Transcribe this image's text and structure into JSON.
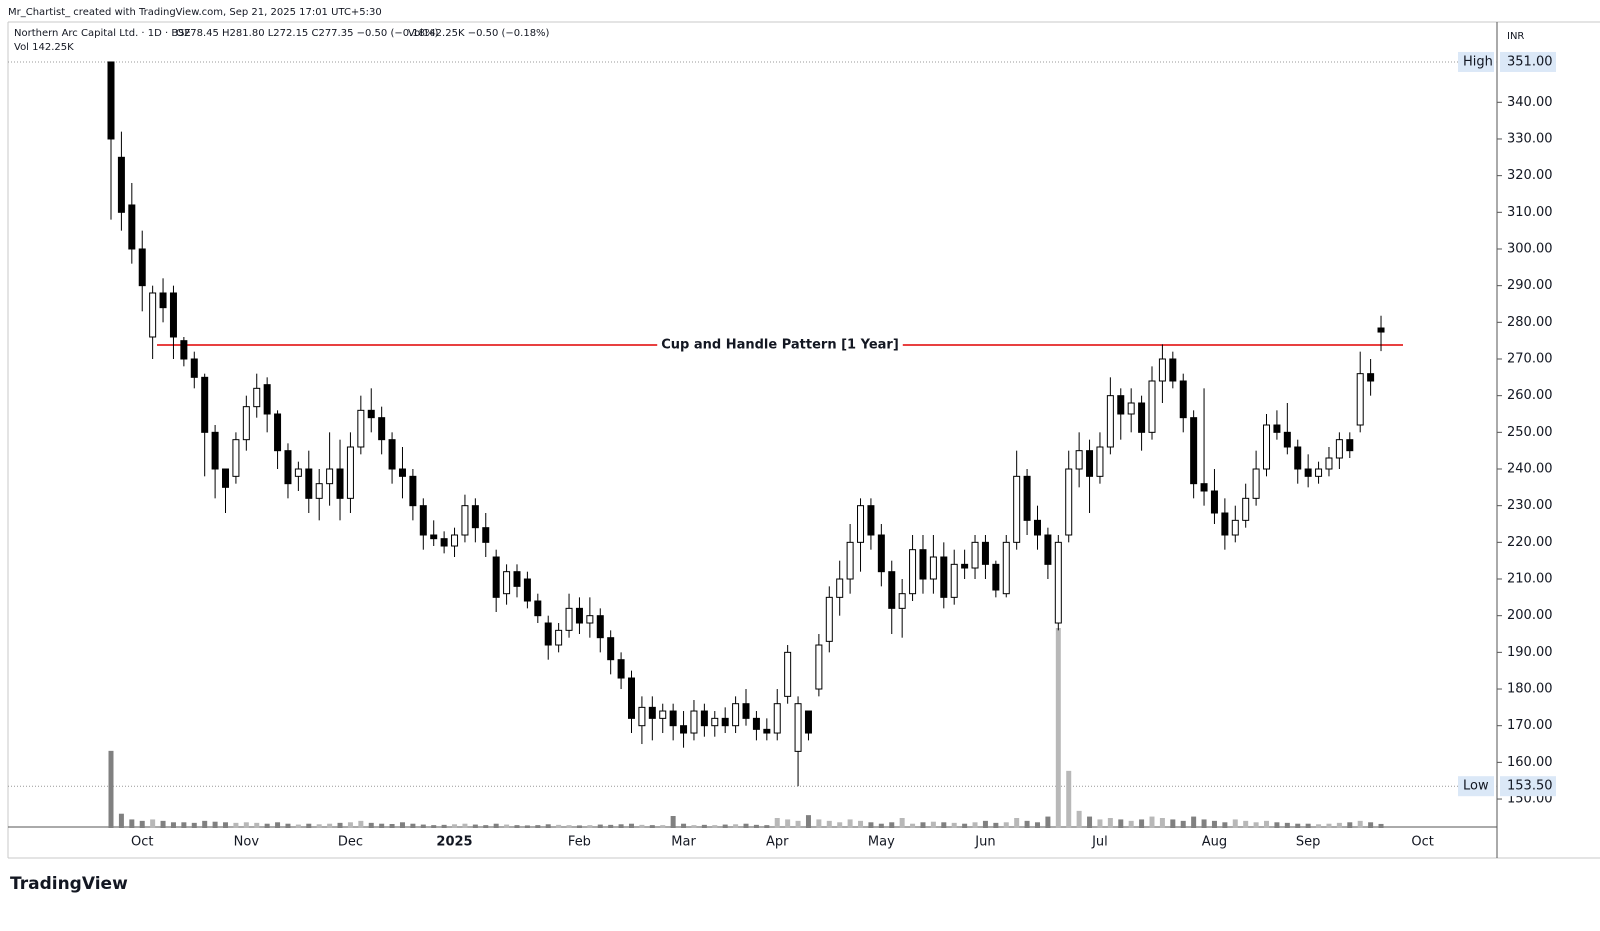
{
  "header": {
    "watermark": "Mr_Chartist_ created with TradingView.com, Sep 21, 2025 17:01 UTC+5:30",
    "symbol": "Northern Arc Capital Ltd. · 1D · BSE",
    "ohlc_text": "O278.45 H281.80 L272.15 C277.35 −0.50 (−0.18%)",
    "vol_text": "Vol142.25K −0.50 (−0.18%)",
    "volume_line": "Vol  142.25K",
    "currency": "INR",
    "logo": "TradingView"
  },
  "chart_data": {
    "type": "candlestick",
    "categories": [
      null,
      null,
      null,
      "Oct",
      null,
      null,
      null,
      null,
      null,
      null,
      null,
      null,
      null,
      "Nov",
      null,
      null,
      null,
      null,
      null,
      null,
      null,
      null,
      null,
      "Dec",
      null,
      null,
      null,
      null,
      null,
      null,
      null,
      null,
      null,
      "2025",
      null,
      null,
      null,
      null,
      null,
      null,
      null,
      null,
      null,
      null,
      null,
      "Feb",
      null,
      null,
      null,
      null,
      null,
      null,
      null,
      null,
      null,
      "Mar",
      null,
      null,
      null,
      null,
      null,
      null,
      null,
      null,
      "Apr",
      null,
      null,
      null,
      null,
      null,
      null,
      null,
      null,
      null,
      "May",
      null,
      null,
      null,
      null,
      null,
      null,
      null,
      null,
      null,
      "Jun",
      null,
      null,
      null,
      null,
      null,
      null,
      null,
      null,
      null,
      null,
      "Jul",
      null,
      null,
      null,
      null,
      null,
      null,
      null,
      null,
      null,
      null,
      "Aug",
      null,
      null,
      null,
      null,
      null,
      null,
      null,
      null,
      "Sep",
      null,
      null,
      null,
      null,
      null,
      null,
      null,
      null,
      null,
      null,
      "Oct"
    ],
    "open": [
      351,
      325,
      312,
      300,
      276,
      288,
      288,
      275,
      270,
      265,
      250,
      240,
      238,
      248,
      257,
      263,
      255,
      245,
      238,
      240,
      232,
      236,
      240,
      232,
      246,
      256,
      254,
      248,
      240,
      238,
      230,
      222,
      221,
      219,
      222,
      230,
      224,
      216,
      206,
      212,
      210,
      204,
      198,
      192,
      196,
      202,
      198,
      200,
      194,
      188,
      183,
      170,
      175,
      172,
      174,
      170,
      168,
      174,
      170,
      172,
      170,
      176,
      172,
      169,
      168,
      178,
      163,
      174,
      180,
      193,
      205,
      210,
      220,
      230,
      222,
      212,
      202,
      206,
      218,
      210,
      216,
      205,
      214,
      213,
      220,
      214,
      206,
      220,
      238,
      226,
      222,
      198,
      222,
      240,
      245,
      238,
      246,
      260,
      255,
      258,
      250,
      264,
      270,
      264,
      254,
      236,
      234,
      228,
      222,
      226,
      232,
      240,
      252,
      250,
      246,
      240,
      238,
      240,
      243,
      248,
      252,
      266,
      278.45,
      null,
      null,
      null,
      null
    ],
    "high": [
      351,
      332,
      318,
      305,
      290,
      292,
      290,
      276,
      272,
      266,
      252,
      240,
      250,
      260,
      266,
      265,
      256,
      247,
      242,
      245,
      240,
      250,
      248,
      250,
      260,
      262,
      257,
      250,
      246,
      240,
      232,
      226,
      223,
      224,
      233,
      232,
      228,
      218,
      214,
      214,
      212,
      206,
      200,
      198,
      206,
      205,
      205,
      202,
      196,
      190,
      185,
      178,
      178,
      176,
      176,
      174,
      177,
      176,
      174,
      175,
      178,
      180,
      174,
      172,
      180,
      192,
      178,
      174,
      195,
      208,
      215,
      225,
      232,
      232,
      225,
      215,
      210,
      222,
      222,
      222,
      220,
      218,
      218,
      222,
      222,
      215,
      222,
      245,
      240,
      230,
      224,
      222,
      245,
      250,
      248,
      250,
      265,
      262,
      262,
      260,
      268,
      274,
      272,
      266,
      256,
      262,
      240,
      232,
      230,
      236,
      245,
      255,
      256,
      258,
      248,
      244,
      242,
      246,
      250,
      250,
      272,
      270,
      281.8,
      null,
      null,
      null,
      null
    ],
    "low": [
      308,
      305,
      296,
      283,
      270,
      280,
      270,
      268,
      262,
      238,
      232,
      228,
      236,
      245,
      254,
      250,
      240,
      232,
      234,
      228,
      226,
      230,
      226,
      228,
      244,
      250,
      244,
      236,
      232,
      226,
      218,
      219,
      217,
      216,
      220,
      220,
      216,
      201,
      203,
      205,
      202,
      198,
      188,
      190,
      194,
      195,
      194,
      190,
      184,
      180,
      168,
      165,
      166,
      168,
      166,
      164,
      166,
      167,
      167,
      168,
      168,
      170,
      166,
      166,
      166,
      176,
      153.5,
      166,
      178,
      190,
      200,
      206,
      212,
      218,
      208,
      195,
      194,
      204,
      206,
      206,
      202,
      203,
      210,
      210,
      210,
      205,
      205,
      218,
      222,
      218,
      210,
      196,
      220,
      235,
      228,
      236,
      244,
      248,
      250,
      245,
      248,
      258,
      262,
      250,
      232,
      230,
      225,
      218,
      220,
      224,
      230,
      238,
      248,
      244,
      236,
      235,
      236,
      238,
      240,
      243,
      250,
      260,
      272.15,
      null,
      null,
      null,
      null
    ],
    "close": [
      330,
      310,
      300,
      290,
      288,
      284,
      276,
      270,
      265,
      250,
      240,
      235,
      248,
      257,
      262,
      255,
      245,
      236,
      240,
      232,
      236,
      240,
      232,
      246,
      256,
      254,
      248,
      240,
      238,
      230,
      222,
      221,
      219,
      222,
      230,
      224,
      220,
      205,
      212,
      208,
      204,
      200,
      192,
      196,
      202,
      198,
      200,
      194,
      188,
      183,
      172,
      175,
      172,
      174,
      170,
      168,
      174,
      170,
      172,
      170,
      176,
      172,
      169,
      168,
      176,
      190,
      176,
      168,
      192,
      205,
      210,
      220,
      230,
      222,
      212,
      202,
      206,
      218,
      210,
      216,
      205,
      214,
      213,
      220,
      214,
      207,
      220,
      238,
      226,
      222,
      214,
      220,
      240,
      245,
      238,
      246,
      260,
      255,
      258,
      250,
      264,
      270,
      264,
      254,
      236,
      234,
      228,
      222,
      226,
      232,
      240,
      252,
      250,
      246,
      240,
      238,
      240,
      243,
      248,
      245,
      266,
      264,
      277.35,
      null,
      null,
      null,
      null
    ],
    "volume": [
      2700,
      500,
      300,
      250,
      300,
      250,
      200,
      200,
      180,
      250,
      220,
      200,
      180,
      200,
      180,
      150,
      200,
      150,
      120,
      150,
      130,
      150,
      180,
      200,
      250,
      180,
      150,
      140,
      200,
      150,
      120,
      100,
      110,
      130,
      150,
      120,
      100,
      150,
      120,
      100,
      90,
      100,
      130,
      110,
      100,
      90,
      100,
      120,
      110,
      130,
      150,
      110,
      100,
      100,
      420,
      150,
      100,
      110,
      100,
      120,
      130,
      150,
      110,
      100,
      350,
      300,
      250,
      450,
      300,
      250,
      200,
      300,
      250,
      200,
      150,
      200,
      350,
      150,
      200,
      220,
      200,
      180,
      150,
      200,
      250,
      180,
      200,
      350,
      250,
      200,
      400,
      7000,
      2000,
      600,
      400,
      300,
      350,
      300,
      250,
      300,
      400,
      350,
      300,
      250,
      400,
      300,
      250,
      200,
      300,
      250,
      200,
      250,
      200,
      180,
      150,
      150,
      130,
      150,
      180,
      200,
      250,
      200,
      142.25,
      null,
      null,
      null,
      null
    ],
    "ylim": [
      142.1,
      361.9
    ],
    "yticks": [
      {
        "value": 150,
        "label": "150.00"
      },
      {
        "value": 160,
        "label": "160.00"
      },
      {
        "value": 170,
        "label": "170.00"
      },
      {
        "value": 180,
        "label": "180.00"
      },
      {
        "value": 190,
        "label": "190.00"
      },
      {
        "value": 200,
        "label": "200.00"
      },
      {
        "value": 210,
        "label": "210.00"
      },
      {
        "value": 220,
        "label": "220.00"
      },
      {
        "value": 230,
        "label": "230.00"
      },
      {
        "value": 240,
        "label": "240.00"
      },
      {
        "value": 250,
        "label": "250.00"
      },
      {
        "value": 260,
        "label": "260.00"
      },
      {
        "value": 270,
        "label": "270.00"
      },
      {
        "value": 280,
        "label": "280.00"
      },
      {
        "value": 290,
        "label": "290.00"
      },
      {
        "value": 300,
        "label": "300.00"
      },
      {
        "value": 310,
        "label": "310.00"
      },
      {
        "value": 320,
        "label": "320.00"
      },
      {
        "value": 330,
        "label": "330.00"
      },
      {
        "value": 340,
        "label": "340.00"
      }
    ],
    "high_marker": {
      "text": "High",
      "value": 351,
      "label": "351.00"
    },
    "low_marker": {
      "text": "Low",
      "value": 153.5,
      "label": "153.50"
    },
    "annotation": {
      "text": "Cup and Handle Pattern [1 Year]",
      "value": 273.8,
      "color": "#e00000"
    },
    "up_color": "#ffffff",
    "down_color": "#000000"
  }
}
